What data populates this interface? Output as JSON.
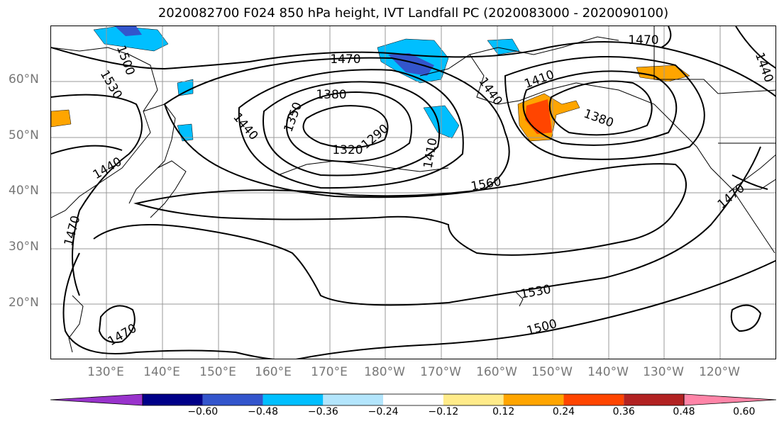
{
  "title": "2020082700 F024 850 hPa height, IVT Landfall PC (2020083000 - 2020090100)",
  "lat_labels": [
    "60°N",
    "50°N",
    "40°N",
    "30°N",
    "20°N"
  ],
  "lon_labels": [
    "130°E",
    "140°E",
    "150°E",
    "160°E",
    "170°E",
    "180°W",
    "170°W",
    "160°W",
    "150°W",
    "140°W",
    "130°W",
    "120°W"
  ],
  "contour_labels": [
    "1470",
    "1500",
    "1530",
    "1380",
    "1350",
    "1320",
    "1290",
    "1440",
    "1410",
    "1380",
    "1410",
    "1440",
    "1470",
    "1440",
    "1470",
    "1560",
    "1530",
    "1500",
    "1470",
    "1470"
  ],
  "colorbar": {
    "ticks": [
      "−0.60",
      "−0.48",
      "−0.36",
      "−0.24",
      "−0.12",
      "0.12",
      "0.24",
      "0.36",
      "0.48",
      "0.60"
    ],
    "colors": [
      "#9933cc",
      "#000088",
      "#3355cc",
      "#00bfff",
      "#b3e5fc",
      "#ffffff",
      "#ffeb8a",
      "#ffa500",
      "#ff4500",
      "#b22222",
      "#ff85a8"
    ]
  }
}
